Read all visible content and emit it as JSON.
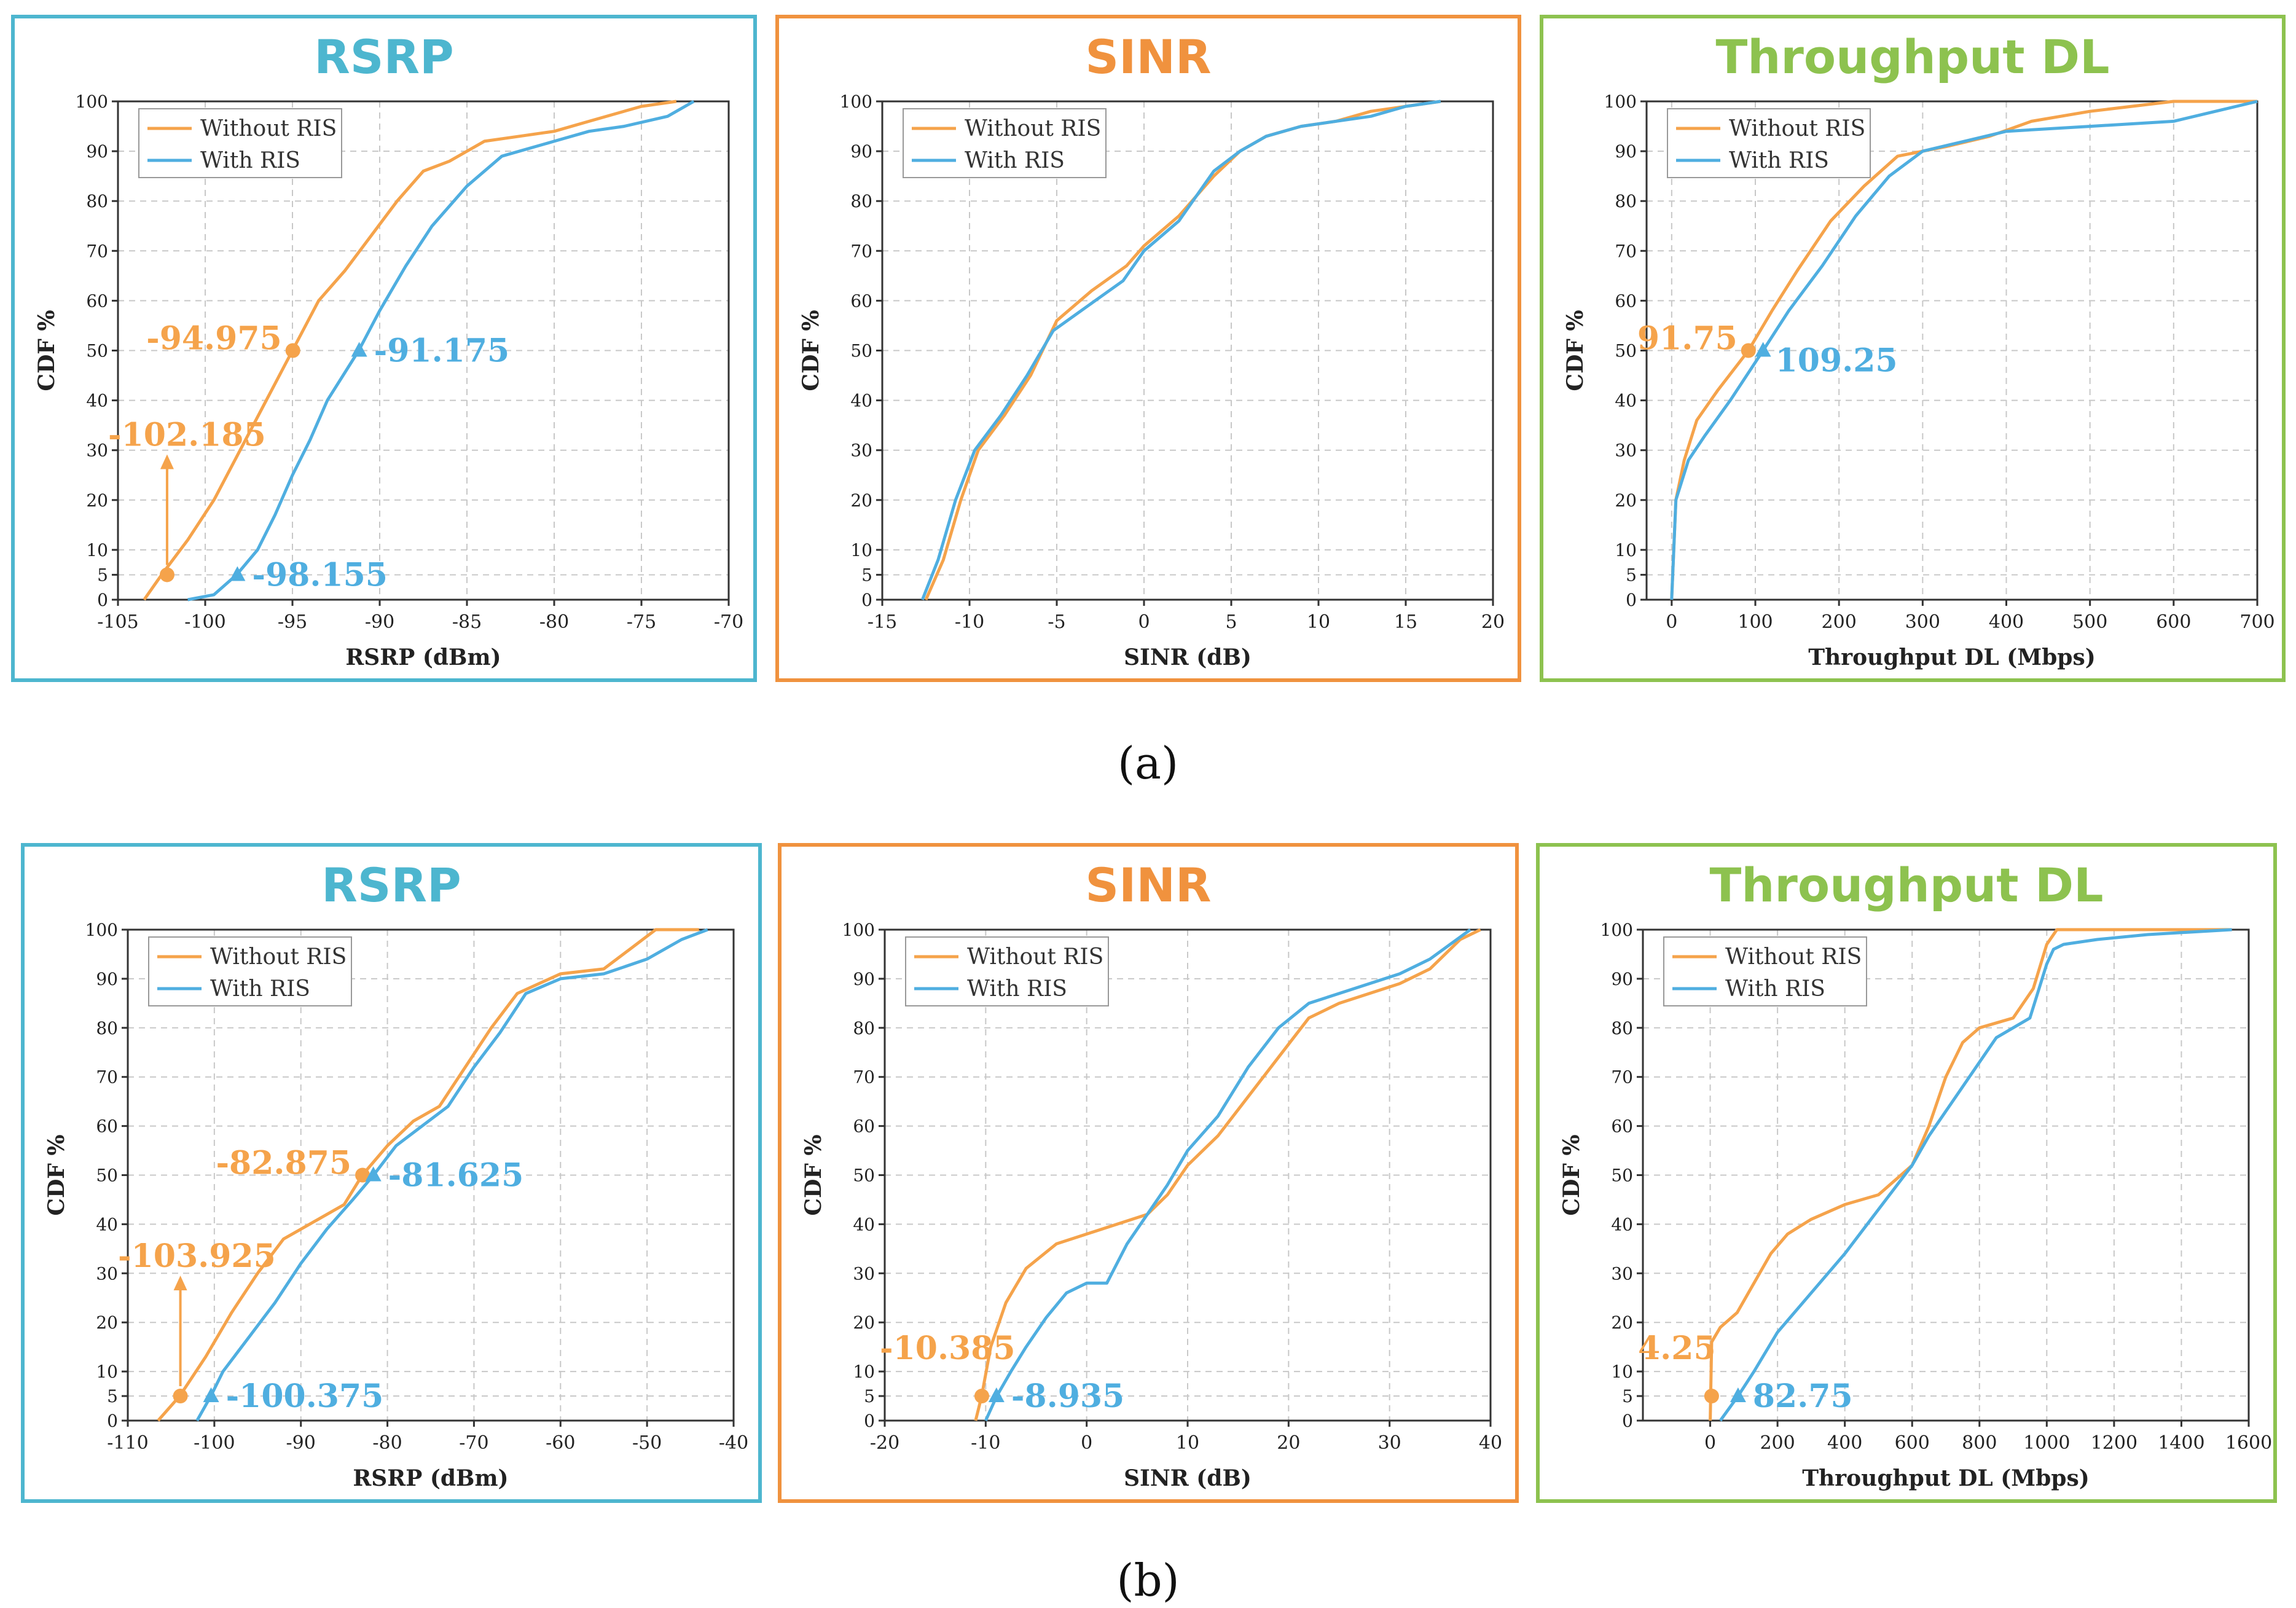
{
  "colors": {
    "without": "#F5A34B",
    "with": "#4FAEE0",
    "rsrp_border": "#4DB6CF",
    "sinr_border": "#F0923E",
    "tp_border": "#8DC24F"
  },
  "figure_labels": [
    "(a)",
    "(b)"
  ],
  "chart_data": [
    {
      "id": "a-rsrp",
      "row": 0,
      "col": 0,
      "type": "line",
      "title": "RSRP",
      "title_color": "#4DB6CF",
      "border_color": "#4DB6CF",
      "xlabel": "RSRP (dBm)",
      "ylabel": "CDF %",
      "xlim": [
        -105,
        -70
      ],
      "ylim": [
        0,
        100
      ],
      "xticks": [
        -105,
        -100,
        -95,
        -90,
        -85,
        -80,
        -75,
        -70
      ],
      "yticks": [
        0,
        5,
        10,
        20,
        30,
        40,
        50,
        60,
        70,
        80,
        90,
        100
      ],
      "grid": true,
      "legend": "top-left",
      "series": [
        {
          "name": "Without RIS",
          "color": "#F5A34B",
          "x": [
            -103.5,
            -102.5,
            -101,
            -99.5,
            -98,
            -96.5,
            -95,
            -93.5,
            -92,
            -90.5,
            -89,
            -87.5,
            -86,
            -84,
            -82,
            -80,
            -78,
            -75,
            -73
          ],
          "y": [
            0,
            5,
            12,
            20,
            30,
            40,
            50,
            60,
            66,
            73,
            80,
            86,
            88,
            92,
            93,
            94,
            96,
            99,
            100
          ]
        },
        {
          "name": "With RIS",
          "color": "#4FAEE0",
          "x": [
            -101,
            -99.5,
            -98.2,
            -97,
            -96,
            -95,
            -94,
            -93,
            -91.2,
            -90,
            -88.5,
            -87,
            -85,
            -83,
            -80,
            -78,
            -76,
            -73.5,
            -72
          ],
          "y": [
            0,
            1,
            5,
            10,
            17,
            25,
            32,
            40,
            50,
            58,
            67,
            75,
            83,
            89,
            92,
            94,
            95,
            97,
            100
          ]
        }
      ],
      "annotations": [
        {
          "text": "-94.975",
          "series": 0,
          "x": -94.975,
          "y": 50,
          "marker": "circle",
          "anchor": "left"
        },
        {
          "text": "-91.175",
          "series": 1,
          "x": -91.175,
          "y": 50,
          "marker": "triangle",
          "anchor": "right"
        },
        {
          "text": "-102.185",
          "series": 0,
          "x": -102.185,
          "y": 5,
          "marker": "circle",
          "anchor": "above",
          "arrow": true
        },
        {
          "text": "-98.155",
          "series": 1,
          "x": -98.155,
          "y": 5,
          "marker": "triangle",
          "anchor": "right"
        }
      ]
    },
    {
      "id": "a-sinr",
      "row": 0,
      "col": 1,
      "type": "line",
      "title": "SINR",
      "title_color": "#F0923E",
      "border_color": "#F0923E",
      "xlabel": "SINR (dB)",
      "ylabel": "CDF %",
      "xlim": [
        -15,
        20
      ],
      "ylim": [
        0,
        100
      ],
      "xticks": [
        -15,
        -10,
        -5,
        0,
        5,
        10,
        15,
        20
      ],
      "yticks": [
        0,
        5,
        10,
        20,
        30,
        40,
        50,
        60,
        70,
        80,
        90,
        100
      ],
      "grid": true,
      "legend": "top-left",
      "series": [
        {
          "name": "Without RIS",
          "color": "#F5A34B",
          "x": [
            -12.5,
            -11.5,
            -10.5,
            -9.5,
            -8,
            -6.5,
            -5,
            -3,
            -1,
            0,
            2,
            4,
            5.5,
            7,
            9,
            11,
            13,
            15,
            17
          ],
          "y": [
            0,
            8,
            20,
            30,
            37,
            45,
            56,
            62,
            67,
            71,
            77,
            85,
            90,
            93,
            95,
            96,
            98,
            99,
            100
          ]
        },
        {
          "name": "With RIS",
          "color": "#4FAEE0",
          "x": [
            -12.7,
            -11.8,
            -10.8,
            -9.7,
            -8.2,
            -6.7,
            -5.2,
            -3.2,
            -1.2,
            0,
            2,
            4,
            5.5,
            7,
            9,
            11,
            13,
            15,
            17
          ],
          "y": [
            0,
            8,
            20,
            30,
            37,
            45,
            54,
            59,
            64,
            70,
            76,
            86,
            90,
            93,
            95,
            96,
            97,
            99,
            100
          ]
        }
      ],
      "annotations": []
    },
    {
      "id": "a-tp",
      "row": 0,
      "col": 2,
      "type": "line",
      "title": "Throughput DL",
      "title_color": "#8DC24F",
      "border_color": "#8DC24F",
      "xlabel": "Throughput DL (Mbps)",
      "ylabel": "CDF %",
      "xlim": [
        -30,
        700
      ],
      "ylim": [
        0,
        100
      ],
      "xticks": [
        0,
        100,
        200,
        300,
        400,
        500,
        600,
        700
      ],
      "yticks": [
        0,
        5,
        10,
        20,
        30,
        40,
        50,
        60,
        70,
        80,
        90,
        100
      ],
      "grid": true,
      "legend": "top-left",
      "series": [
        {
          "name": "Without RIS",
          "color": "#F5A34B",
          "x": [
            0,
            5,
            15,
            30,
            55,
            91.75,
            120,
            150,
            190,
            230,
            270,
            330,
            380,
            430,
            500,
            600,
            700
          ],
          "y": [
            0,
            20,
            28,
            36,
            42,
            50,
            58,
            66,
            76,
            83,
            89,
            91,
            93,
            96,
            98,
            100,
            100
          ]
        },
        {
          "name": "With RIS",
          "color": "#4FAEE0",
          "x": [
            0,
            5,
            20,
            40,
            70,
            109.25,
            140,
            180,
            220,
            260,
            300,
            350,
            400,
            500,
            600,
            650,
            700
          ],
          "y": [
            0,
            20,
            28,
            33,
            40,
            50,
            58,
            67,
            77,
            85,
            90,
            92,
            94,
            95,
            96,
            98,
            100
          ]
        }
      ],
      "annotations": [
        {
          "text": "91.75",
          "series": 0,
          "x": 91.75,
          "y": 50,
          "marker": "circle",
          "anchor": "left"
        },
        {
          "text": "109.25",
          "series": 1,
          "x": 109.25,
          "y": 50,
          "marker": "triangle",
          "anchor": "right-below"
        }
      ]
    },
    {
      "id": "b-rsrp",
      "row": 1,
      "col": 0,
      "type": "line",
      "title": "RSRP",
      "title_color": "#4DB6CF",
      "border_color": "#4DB6CF",
      "xlabel": "RSRP (dBm)",
      "ylabel": "CDF %",
      "xlim": [
        -110,
        -40
      ],
      "ylim": [
        0,
        100
      ],
      "xticks": [
        -110,
        -100,
        -90,
        -80,
        -70,
        -60,
        -50,
        -40
      ],
      "yticks": [
        0,
        5,
        10,
        20,
        30,
        40,
        50,
        60,
        70,
        80,
        90,
        100
      ],
      "grid": true,
      "legend": "top-left",
      "series": [
        {
          "name": "Without RIS",
          "color": "#F5A34B",
          "x": [
            -106.5,
            -104,
            -101,
            -98,
            -95,
            -92,
            -88,
            -85,
            -82.9,
            -80,
            -77,
            -74,
            -71,
            -68,
            -65,
            -60,
            -55,
            -52,
            -49,
            -44
          ],
          "y": [
            0,
            5,
            13,
            22,
            30,
            37,
            41,
            44,
            50,
            56,
            61,
            64,
            72,
            80,
            87,
            91,
            92,
            96,
            100,
            100
          ]
        },
        {
          "name": "With RIS",
          "color": "#4FAEE0",
          "x": [
            -102,
            -100.4,
            -99,
            -96,
            -93,
            -90,
            -87,
            -84,
            -81.6,
            -79,
            -76,
            -73,
            -70,
            -67,
            -64,
            -60,
            -55,
            -50,
            -46,
            -43
          ],
          "y": [
            0,
            5,
            10,
            17,
            24,
            32,
            39,
            45,
            50,
            56,
            60,
            64,
            72,
            79,
            87,
            90,
            91,
            94,
            98,
            100
          ]
        }
      ],
      "annotations": [
        {
          "text": "-82.875",
          "series": 0,
          "x": -82.875,
          "y": 50,
          "marker": "circle",
          "anchor": "left"
        },
        {
          "text": "-81.625",
          "series": 1,
          "x": -81.625,
          "y": 50,
          "marker": "triangle",
          "anchor": "right"
        },
        {
          "text": "-103.925",
          "series": 0,
          "x": -103.925,
          "y": 5,
          "marker": "circle",
          "anchor": "above",
          "arrow": true
        },
        {
          "text": "-100.375",
          "series": 1,
          "x": -100.375,
          "y": 5,
          "marker": "triangle",
          "anchor": "right"
        }
      ]
    },
    {
      "id": "b-sinr",
      "row": 1,
      "col": 1,
      "type": "line",
      "title": "SINR",
      "title_color": "#F0923E",
      "border_color": "#F0923E",
      "xlabel": "SINR (dB)",
      "ylabel": "CDF %",
      "xlim": [
        -20,
        40
      ],
      "ylim": [
        0,
        100
      ],
      "xticks": [
        -20,
        -10,
        0,
        10,
        20,
        30,
        40
      ],
      "yticks": [
        0,
        5,
        10,
        20,
        30,
        40,
        50,
        60,
        70,
        80,
        90,
        100
      ],
      "grid": true,
      "legend": "top-left",
      "series": [
        {
          "name": "Without RIS",
          "color": "#F5A34B",
          "x": [
            -11,
            -10.4,
            -9.5,
            -8,
            -6,
            -3,
            0,
            3,
            6,
            8,
            10,
            13,
            16,
            19,
            22,
            25,
            28,
            31,
            34,
            37,
            39
          ],
          "y": [
            0,
            5,
            15,
            24,
            31,
            36,
            38,
            40,
            42,
            46,
            52,
            58,
            66,
            74,
            82,
            85,
            87,
            89,
            92,
            98,
            100
          ]
        },
        {
          "name": "With RIS",
          "color": "#4FAEE0",
          "x": [
            -10,
            -8.9,
            -7.5,
            -6,
            -4,
            -2,
            0,
            2,
            4,
            6,
            8,
            10,
            13,
            16,
            19,
            22,
            25,
            28,
            31,
            34,
            38
          ],
          "y": [
            0,
            5,
            10,
            15,
            21,
            26,
            28,
            28,
            36,
            42,
            48,
            55,
            62,
            72,
            80,
            85,
            87,
            89,
            91,
            94,
            100
          ]
        }
      ],
      "annotations": [
        {
          "text": "-10.385",
          "series": 0,
          "x": -10.385,
          "y": 5,
          "marker": "circle",
          "anchor": "above-left"
        },
        {
          "text": "-8.935",
          "series": 1,
          "x": -8.935,
          "y": 5,
          "marker": "triangle",
          "anchor": "right"
        }
      ]
    },
    {
      "id": "b-tp",
      "row": 1,
      "col": 2,
      "type": "line",
      "title": "Throughput DL",
      "title_color": "#8DC24F",
      "border_color": "#8DC24F",
      "xlabel": "Throughput DL (Mbps)",
      "ylabel": "CDF %",
      "xlim": [
        -200,
        1600
      ],
      "ylim": [
        0,
        100
      ],
      "xticks": [
        0,
        200,
        400,
        600,
        800,
        1000,
        1200,
        1400,
        1600
      ],
      "yticks": [
        0,
        5,
        10,
        20,
        30,
        40,
        50,
        60,
        70,
        80,
        90,
        100
      ],
      "grid": true,
      "legend": "top-left",
      "series": [
        {
          "name": "Without RIS",
          "color": "#F5A34B",
          "x": [
            0,
            4.25,
            30,
            80,
            130,
            180,
            230,
            300,
            400,
            500,
            600,
            650,
            700,
            750,
            800,
            900,
            960,
            1000,
            1030,
            1100,
            1300,
            1550
          ],
          "y": [
            0,
            16,
            19,
            22,
            28,
            34,
            38,
            41,
            44,
            46,
            52,
            60,
            70,
            77,
            80,
            82,
            88,
            97,
            100,
            100,
            100,
            100
          ]
        },
        {
          "name": "With RIS",
          "color": "#4FAEE0",
          "x": [
            30,
            82.75,
            130,
            200,
            300,
            400,
            500,
            600,
            650,
            700,
            750,
            800,
            850,
            950,
            1000,
            1020,
            1050,
            1150,
            1300,
            1550
          ],
          "y": [
            0,
            5,
            10,
            18,
            26,
            34,
            43,
            52,
            58,
            63,
            68,
            73,
            78,
            82,
            93,
            96,
            97,
            98,
            99,
            100
          ]
        }
      ],
      "annotations": [
        {
          "text": "4.25",
          "series": 0,
          "x": 4.25,
          "y": 5,
          "marker": "circle",
          "anchor": "above-left"
        },
        {
          "text": "82.75",
          "series": 1,
          "x": 82.75,
          "y": 5,
          "marker": "triangle",
          "anchor": "right"
        }
      ]
    }
  ]
}
